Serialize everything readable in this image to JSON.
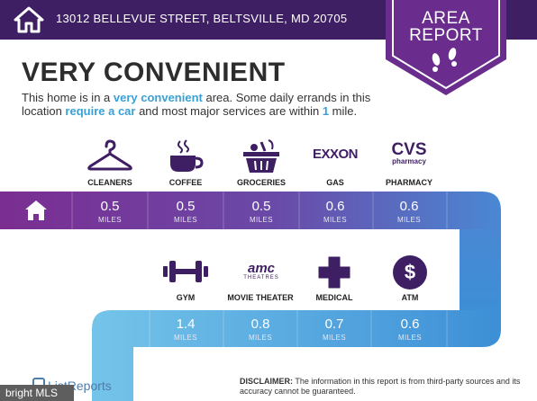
{
  "header": {
    "address": "13012 BELLEVUE STREET, BELTSVILLE, MD 20705"
  },
  "badge": {
    "line1": "AREA",
    "line2": "REPORT"
  },
  "headline": "VERY CONVENIENT",
  "description": {
    "part1": "This home is in a ",
    "highlight1": "very convenient",
    "part2": " area. Some daily errands in this location ",
    "highlight2": "require a car",
    "part3": " and most major services are within ",
    "highlight3": "1",
    "part4": " mile."
  },
  "row1": [
    {
      "label": "CLEANERS",
      "value": "0.5",
      "unit": "MILES",
      "icon": "hanger-icon"
    },
    {
      "label": "COFFEE",
      "value": "0.5",
      "unit": "MILES",
      "icon": "coffee-cup-icon"
    },
    {
      "label": "GROCERIES",
      "value": "0.5",
      "unit": "MILES",
      "icon": "grocery-basket-icon"
    },
    {
      "label": "GAS",
      "value": "0.6",
      "unit": "MILES",
      "icon": "exxon-logo",
      "logo_text": "EXXON"
    },
    {
      "label": "PHARMACY",
      "value": "0.6",
      "unit": "MILES",
      "icon": "cvs-logo",
      "logo_text": "CVS",
      "logo_sub": "pharmacy"
    }
  ],
  "row2": [
    {
      "label": "GYM",
      "value": "1.4",
      "unit": "MILES",
      "icon": "dumbbell-icon"
    },
    {
      "label": "MOVIE THEATER",
      "value": "0.8",
      "unit": "MILES",
      "icon": "amc-logo",
      "logo_text": "amc",
      "logo_sub": "THEATRES"
    },
    {
      "label": "MEDICAL",
      "value": "0.7",
      "unit": "MILES",
      "icon": "medical-cross-icon"
    },
    {
      "label": "ATM",
      "value": "0.6",
      "unit": "MILES",
      "icon": "dollar-coin-icon",
      "symbol": "$"
    }
  ],
  "footer": {
    "brand": "ListReports",
    "mls": "bright MLS",
    "disclaimer_label": "DISCLAIMER:",
    "disclaimer_text": " The information in this report is from third-party sources and its accuracy cannot be guaranteed."
  },
  "colors": {
    "header_bg": "#3f1f63",
    "badge": "#6a2d8e",
    "accent_text": "#3aa0d6",
    "flow_start": "#7b2d91",
    "flow_end": "#4aa6e0"
  }
}
